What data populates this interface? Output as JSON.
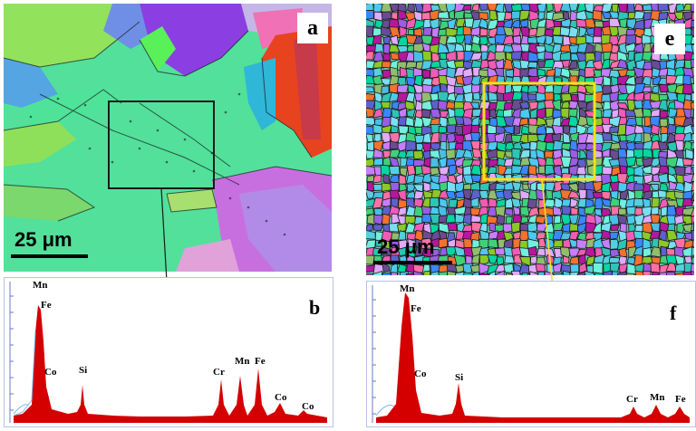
{
  "figure": {
    "panels": {
      "a": {
        "label": "a",
        "scale_bar": "25 μm"
      },
      "e": {
        "label": "e",
        "scale_bar": "25 μm"
      },
      "b": {
        "label": "b",
        "peaks": [
          {
            "element": "Mn"
          },
          {
            "element": "Fe"
          },
          {
            "element": "Co"
          },
          {
            "element": "Si"
          },
          {
            "element": "Cr"
          },
          {
            "element": "Mn"
          },
          {
            "element": "Fe"
          },
          {
            "element": "Co"
          },
          {
            "element": "Co"
          }
        ]
      },
      "f": {
        "label": "f",
        "peaks": [
          {
            "element": "Mn"
          },
          {
            "element": "Fe"
          },
          {
            "element": "Co"
          },
          {
            "element": "Si"
          },
          {
            "element": "Cr"
          },
          {
            "element": "Mn"
          },
          {
            "element": "Fe"
          }
        ]
      }
    },
    "colors": {
      "spectrum_fill": "#d40000",
      "frame_box_a": "#1a1a1a",
      "frame_box_e": "#f2e21b",
      "arrow_e": "#f2e21b"
    }
  }
}
